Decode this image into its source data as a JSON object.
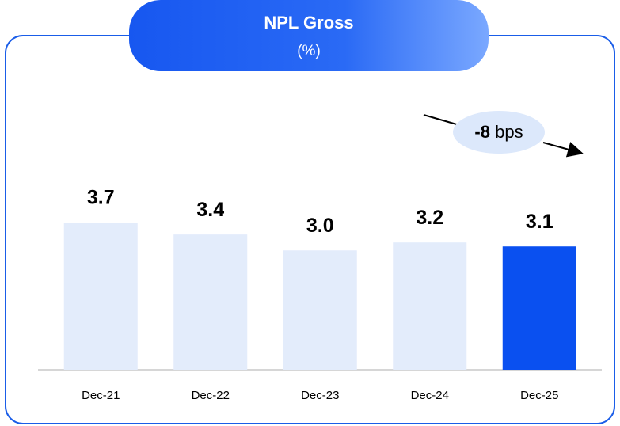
{
  "chart_data": {
    "type": "bar",
    "title": "NPL Gross",
    "subtitle": "(%)",
    "categories": [
      "Dec-21",
      "Dec-22",
      "Dec-23",
      "Dec-24",
      "Dec-25"
    ],
    "values": [
      3.7,
      3.4,
      3.0,
      3.2,
      3.1
    ],
    "value_labels": [
      "3.7",
      "3.4",
      "3.0",
      "3.2",
      "3.1"
    ],
    "colors": [
      "#e3ecfb",
      "#e3ecfb",
      "#e3ecfb",
      "#e3ecfb",
      "#0a50f0"
    ],
    "ylim": [
      0,
      4
    ],
    "annotation": {
      "emphasis": "-8",
      "text": "bps"
    }
  }
}
